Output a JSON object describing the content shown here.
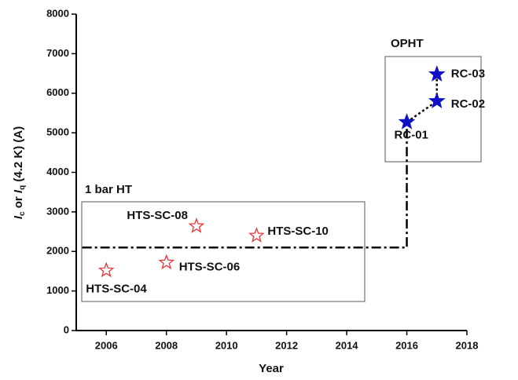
{
  "chart_data": {
    "type": "scatter",
    "xlabel": "Year",
    "ylabel": [
      "I",
      "c",
      " or ",
      "I",
      "q",
      " (4.2 K) (A)"
    ],
    "xlim": [
      2005,
      2018
    ],
    "xticks": [
      2006,
      2008,
      2010,
      2012,
      2014,
      2016,
      2018
    ],
    "ylim": [
      0,
      8000
    ],
    "yticks": [
      0,
      1000,
      2000,
      3000,
      4000,
      5000,
      6000,
      7000,
      8000
    ],
    "series": [
      {
        "name": "1 bar HT",
        "color": "#e8343a",
        "filled": false,
        "x": [
          2006,
          2008,
          2009,
          2011
        ],
        "values": [
          1520,
          1720,
          2640,
          2400
        ],
        "labels": [
          "HTS-SC-04",
          "HTS-SC-06",
          "HTS-SC-08",
          "HTS-SC-10"
        ]
      },
      {
        "name": "OPHT",
        "color": "#1010c8",
        "filled": true,
        "x": [
          2016,
          2017,
          2017
        ],
        "values": [
          5270,
          5800,
          6480
        ],
        "labels": [
          "RC-01",
          "RC-02",
          "RC-03"
        ]
      }
    ],
    "lines": [
      {
        "x": [
          2005.2,
          2016,
          2016
        ],
        "y": [
          2100,
          2100,
          5270
        ],
        "style": "dashdot"
      },
      {
        "x": [
          2016,
          2017,
          2017
        ],
        "y": [
          5270,
          5800,
          6480
        ],
        "style": "dot"
      }
    ]
  }
}
